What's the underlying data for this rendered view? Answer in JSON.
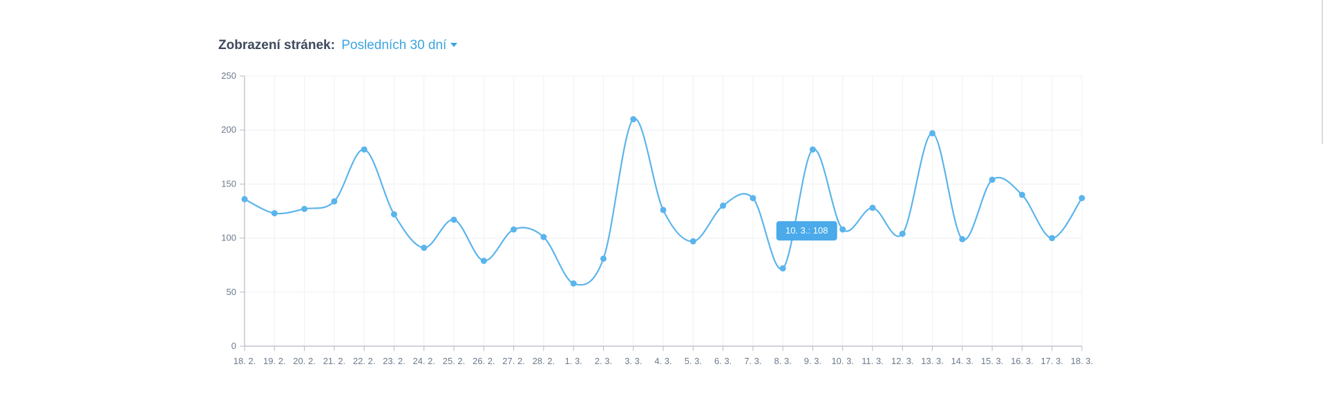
{
  "header": {
    "label": "Zobrazení stránek:",
    "range_value": "Posledních 30 dní"
  },
  "colors": {
    "series": "#5ab4ec",
    "tooltip_bg": "#4aaaea",
    "axis": "#b5b9c0",
    "grid": "#eef0f3"
  },
  "chart_data": {
    "type": "line",
    "categories": [
      "18. 2.",
      "19. 2.",
      "20. 2.",
      "21. 2.",
      "22. 2.",
      "23. 2.",
      "24. 2.",
      "25. 2.",
      "26. 2.",
      "27. 2.",
      "28. 2.",
      "1. 3.",
      "2. 3.",
      "3. 3.",
      "4. 3.",
      "5. 3.",
      "6. 3.",
      "7. 3.",
      "8. 3.",
      "9. 3.",
      "10. 3.",
      "11. 3.",
      "12. 3.",
      "13. 3.",
      "14. 3.",
      "15. 3.",
      "16. 3.",
      "17. 3.",
      "18. 3."
    ],
    "series": [
      {
        "values": [
          136,
          123,
          127,
          134,
          182,
          122,
          91,
          117,
          79,
          108,
          101,
          58,
          81,
          210,
          126,
          97,
          130,
          137,
          72,
          182,
          108,
          128,
          104,
          197,
          99,
          154,
          140,
          100,
          137
        ]
      }
    ],
    "ylim": [
      0,
      250
    ],
    "yticks": [
      0,
      50,
      100,
      150,
      200,
      250
    ],
    "grid": true,
    "curve": "smooth",
    "tooltip": {
      "category": "10. 3.",
      "value": 108,
      "text": "10. 3.: 108"
    }
  }
}
